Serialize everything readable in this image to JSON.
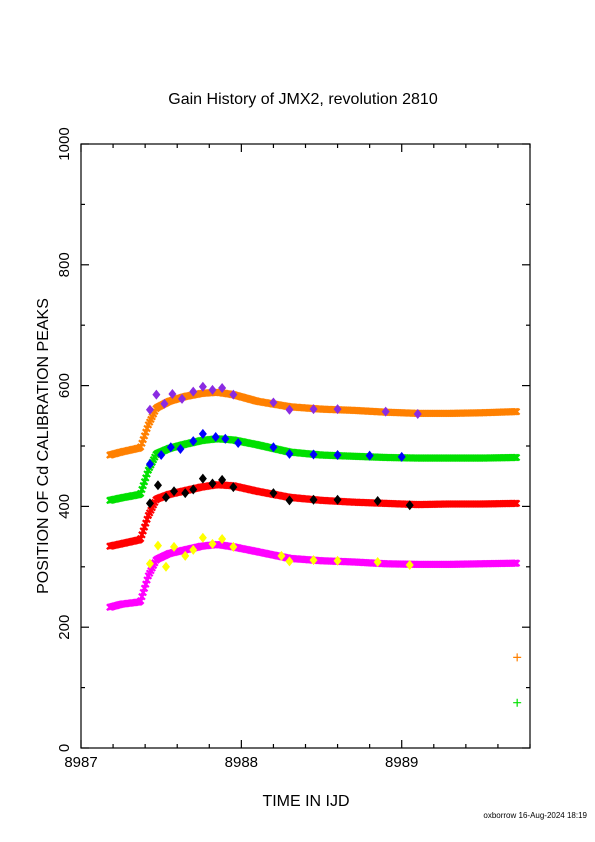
{
  "chart_data": {
    "type": "scatter",
    "title": "Gain History of JMX2, revolution 2810",
    "xlabel": "TIME IN IJD",
    "ylabel": "POSITION OF Cd CALIBRATION PEAKS",
    "xlim": [
      8987.0,
      8989.8
    ],
    "ylim": [
      0,
      1000
    ],
    "x_ticks": [
      8987,
      8988,
      8989
    ],
    "x_tick_labels": [
      "8987",
      "8988",
      "8989"
    ],
    "y_ticks": [
      0,
      200,
      400,
      600,
      800,
      1000
    ],
    "y_tick_labels": [
      "0",
      "200",
      "400",
      "600",
      "800",
      "1000"
    ],
    "grid": false,
    "series": [
      {
        "color": "#ff8000",
        "marker": "x",
        "points": [
          [
            8987.18,
            485
          ],
          [
            8987.25,
            490
          ],
          [
            8987.37,
            497
          ],
          [
            8987.42,
            535
          ],
          [
            8987.47,
            563
          ],
          [
            8987.55,
            574
          ],
          [
            8987.65,
            582
          ],
          [
            8987.75,
            587
          ],
          [
            8987.85,
            589
          ],
          [
            8987.95,
            585
          ],
          [
            8988.1,
            574
          ],
          [
            8988.3,
            565
          ],
          [
            8988.5,
            561
          ],
          [
            8988.7,
            559
          ],
          [
            8988.9,
            556
          ],
          [
            8989.1,
            554
          ],
          [
            8989.3,
            554
          ],
          [
            8989.5,
            555
          ],
          [
            8989.72,
            557
          ]
        ]
      },
      {
        "color": "#8a2be2",
        "marker": "diamond",
        "points": [
          [
            8987.43,
            560
          ],
          [
            8987.47,
            585
          ],
          [
            8987.52,
            570
          ],
          [
            8987.57,
            586
          ],
          [
            8987.63,
            578
          ],
          [
            8987.7,
            590
          ],
          [
            8987.76,
            598
          ],
          [
            8987.82,
            593
          ],
          [
            8987.88,
            596
          ],
          [
            8987.95,
            585
          ],
          [
            8988.2,
            572
          ],
          [
            8988.3,
            560
          ],
          [
            8988.45,
            561
          ],
          [
            8988.6,
            561
          ],
          [
            8988.9,
            557
          ],
          [
            8989.1,
            553
          ]
        ]
      },
      {
        "color": "#00e000",
        "marker": "x",
        "points": [
          [
            8987.18,
            410
          ],
          [
            8987.25,
            414
          ],
          [
            8987.37,
            420
          ],
          [
            8987.42,
            460
          ],
          [
            8987.47,
            487
          ],
          [
            8987.55,
            496
          ],
          [
            8987.65,
            503
          ],
          [
            8987.75,
            509
          ],
          [
            8987.85,
            512
          ],
          [
            8987.95,
            510
          ],
          [
            8988.1,
            502
          ],
          [
            8988.3,
            490
          ],
          [
            8988.5,
            485
          ],
          [
            8988.7,
            483
          ],
          [
            8988.9,
            481
          ],
          [
            8989.1,
            480
          ],
          [
            8989.3,
            480
          ],
          [
            8989.5,
            480
          ],
          [
            8989.72,
            481
          ]
        ]
      },
      {
        "color": "#0000ff",
        "marker": "diamond",
        "points": [
          [
            8987.43,
            470
          ],
          [
            8987.5,
            485
          ],
          [
            8987.56,
            498
          ],
          [
            8987.62,
            495
          ],
          [
            8987.7,
            508
          ],
          [
            8987.76,
            520
          ],
          [
            8987.84,
            515
          ],
          [
            8987.9,
            512
          ],
          [
            8987.98,
            505
          ],
          [
            8988.2,
            498
          ],
          [
            8988.3,
            487
          ],
          [
            8988.45,
            486
          ],
          [
            8988.6,
            485
          ],
          [
            8988.8,
            484
          ],
          [
            8989.0,
            482
          ]
        ]
      },
      {
        "color": "#ff0000",
        "marker": "x",
        "points": [
          [
            8987.18,
            334
          ],
          [
            8987.25,
            338
          ],
          [
            8987.37,
            345
          ],
          [
            8987.42,
            385
          ],
          [
            8987.47,
            412
          ],
          [
            8987.55,
            420
          ],
          [
            8987.65,
            426
          ],
          [
            8987.75,
            432
          ],
          [
            8987.85,
            436
          ],
          [
            8987.95,
            434
          ],
          [
            8988.1,
            425
          ],
          [
            8988.3,
            415
          ],
          [
            8988.5,
            410
          ],
          [
            8988.7,
            407
          ],
          [
            8988.9,
            405
          ],
          [
            8989.1,
            403
          ],
          [
            8989.3,
            404
          ],
          [
            8989.5,
            404
          ],
          [
            8989.72,
            405
          ]
        ]
      },
      {
        "color": "#000000",
        "marker": "diamond",
        "points": [
          [
            8987.43,
            405
          ],
          [
            8987.48,
            435
          ],
          [
            8987.53,
            415
          ],
          [
            8987.58,
            425
          ],
          [
            8987.65,
            422
          ],
          [
            8987.7,
            428
          ],
          [
            8987.76,
            446
          ],
          [
            8987.82,
            438
          ],
          [
            8987.88,
            444
          ],
          [
            8987.95,
            432
          ],
          [
            8988.2,
            422
          ],
          [
            8988.3,
            410
          ],
          [
            8988.45,
            411
          ],
          [
            8988.6,
            411
          ],
          [
            8988.85,
            409
          ],
          [
            8989.05,
            402
          ]
        ]
      },
      {
        "color": "#ff00ff",
        "marker": "x",
        "points": [
          [
            8987.18,
            233
          ],
          [
            8987.25,
            238
          ],
          [
            8987.37,
            242
          ],
          [
            8987.42,
            285
          ],
          [
            8987.47,
            312
          ],
          [
            8987.55,
            322
          ],
          [
            8987.65,
            328
          ],
          [
            8987.75,
            334
          ],
          [
            8987.85,
            337
          ],
          [
            8987.95,
            333
          ],
          [
            8988.1,
            325
          ],
          [
            8988.3,
            314
          ],
          [
            8988.5,
            310
          ],
          [
            8988.7,
            308
          ],
          [
            8988.9,
            305
          ],
          [
            8989.1,
            304
          ],
          [
            8989.3,
            304
          ],
          [
            8989.5,
            305
          ],
          [
            8989.72,
            306
          ]
        ]
      },
      {
        "color": "#ffff00",
        "marker": "diamond",
        "points": [
          [
            8987.43,
            305
          ],
          [
            8987.48,
            335
          ],
          [
            8987.53,
            300
          ],
          [
            8987.58,
            333
          ],
          [
            8987.65,
            318
          ],
          [
            8987.7,
            328
          ],
          [
            8987.76,
            348
          ],
          [
            8987.82,
            338
          ],
          [
            8987.88,
            346
          ],
          [
            8987.95,
            333
          ],
          [
            8988.25,
            318
          ],
          [
            8988.3,
            309
          ],
          [
            8988.45,
            311
          ],
          [
            8988.6,
            310
          ],
          [
            8988.85,
            308
          ],
          [
            8989.05,
            303
          ]
        ]
      }
    ],
    "side_markers": [
      {
        "color": "#ff8000",
        "x": 8989.72,
        "y": 150
      },
      {
        "color": "#00e000",
        "x": 8989.72,
        "y": 75
      }
    ]
  },
  "footer": "oxborrow 16-Aug-2024 18:19"
}
